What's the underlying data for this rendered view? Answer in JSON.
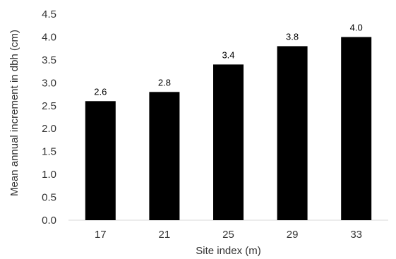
{
  "chart_data": {
    "type": "bar",
    "title": "",
    "xlabel": "Site index (m)",
    "ylabel": "Mean annual increment in dbh (cm)",
    "categories": [
      "17",
      "21",
      "25",
      "29",
      "33"
    ],
    "values": [
      2.6,
      2.8,
      3.4,
      3.8,
      4.0
    ],
    "data_labels": [
      "2.6",
      "2.8",
      "3.4",
      "3.8",
      "4.0"
    ],
    "ylim": [
      0,
      4.5
    ],
    "yticks": [
      "0.0",
      "0.5",
      "1.0",
      "1.5",
      "2.0",
      "2.5",
      "3.0",
      "3.5",
      "4.0",
      "4.5"
    ],
    "grid": false,
    "legend": "none",
    "colors": {
      "bar": "#000000",
      "axis": "#d9d9d9",
      "text": "#333333"
    }
  }
}
